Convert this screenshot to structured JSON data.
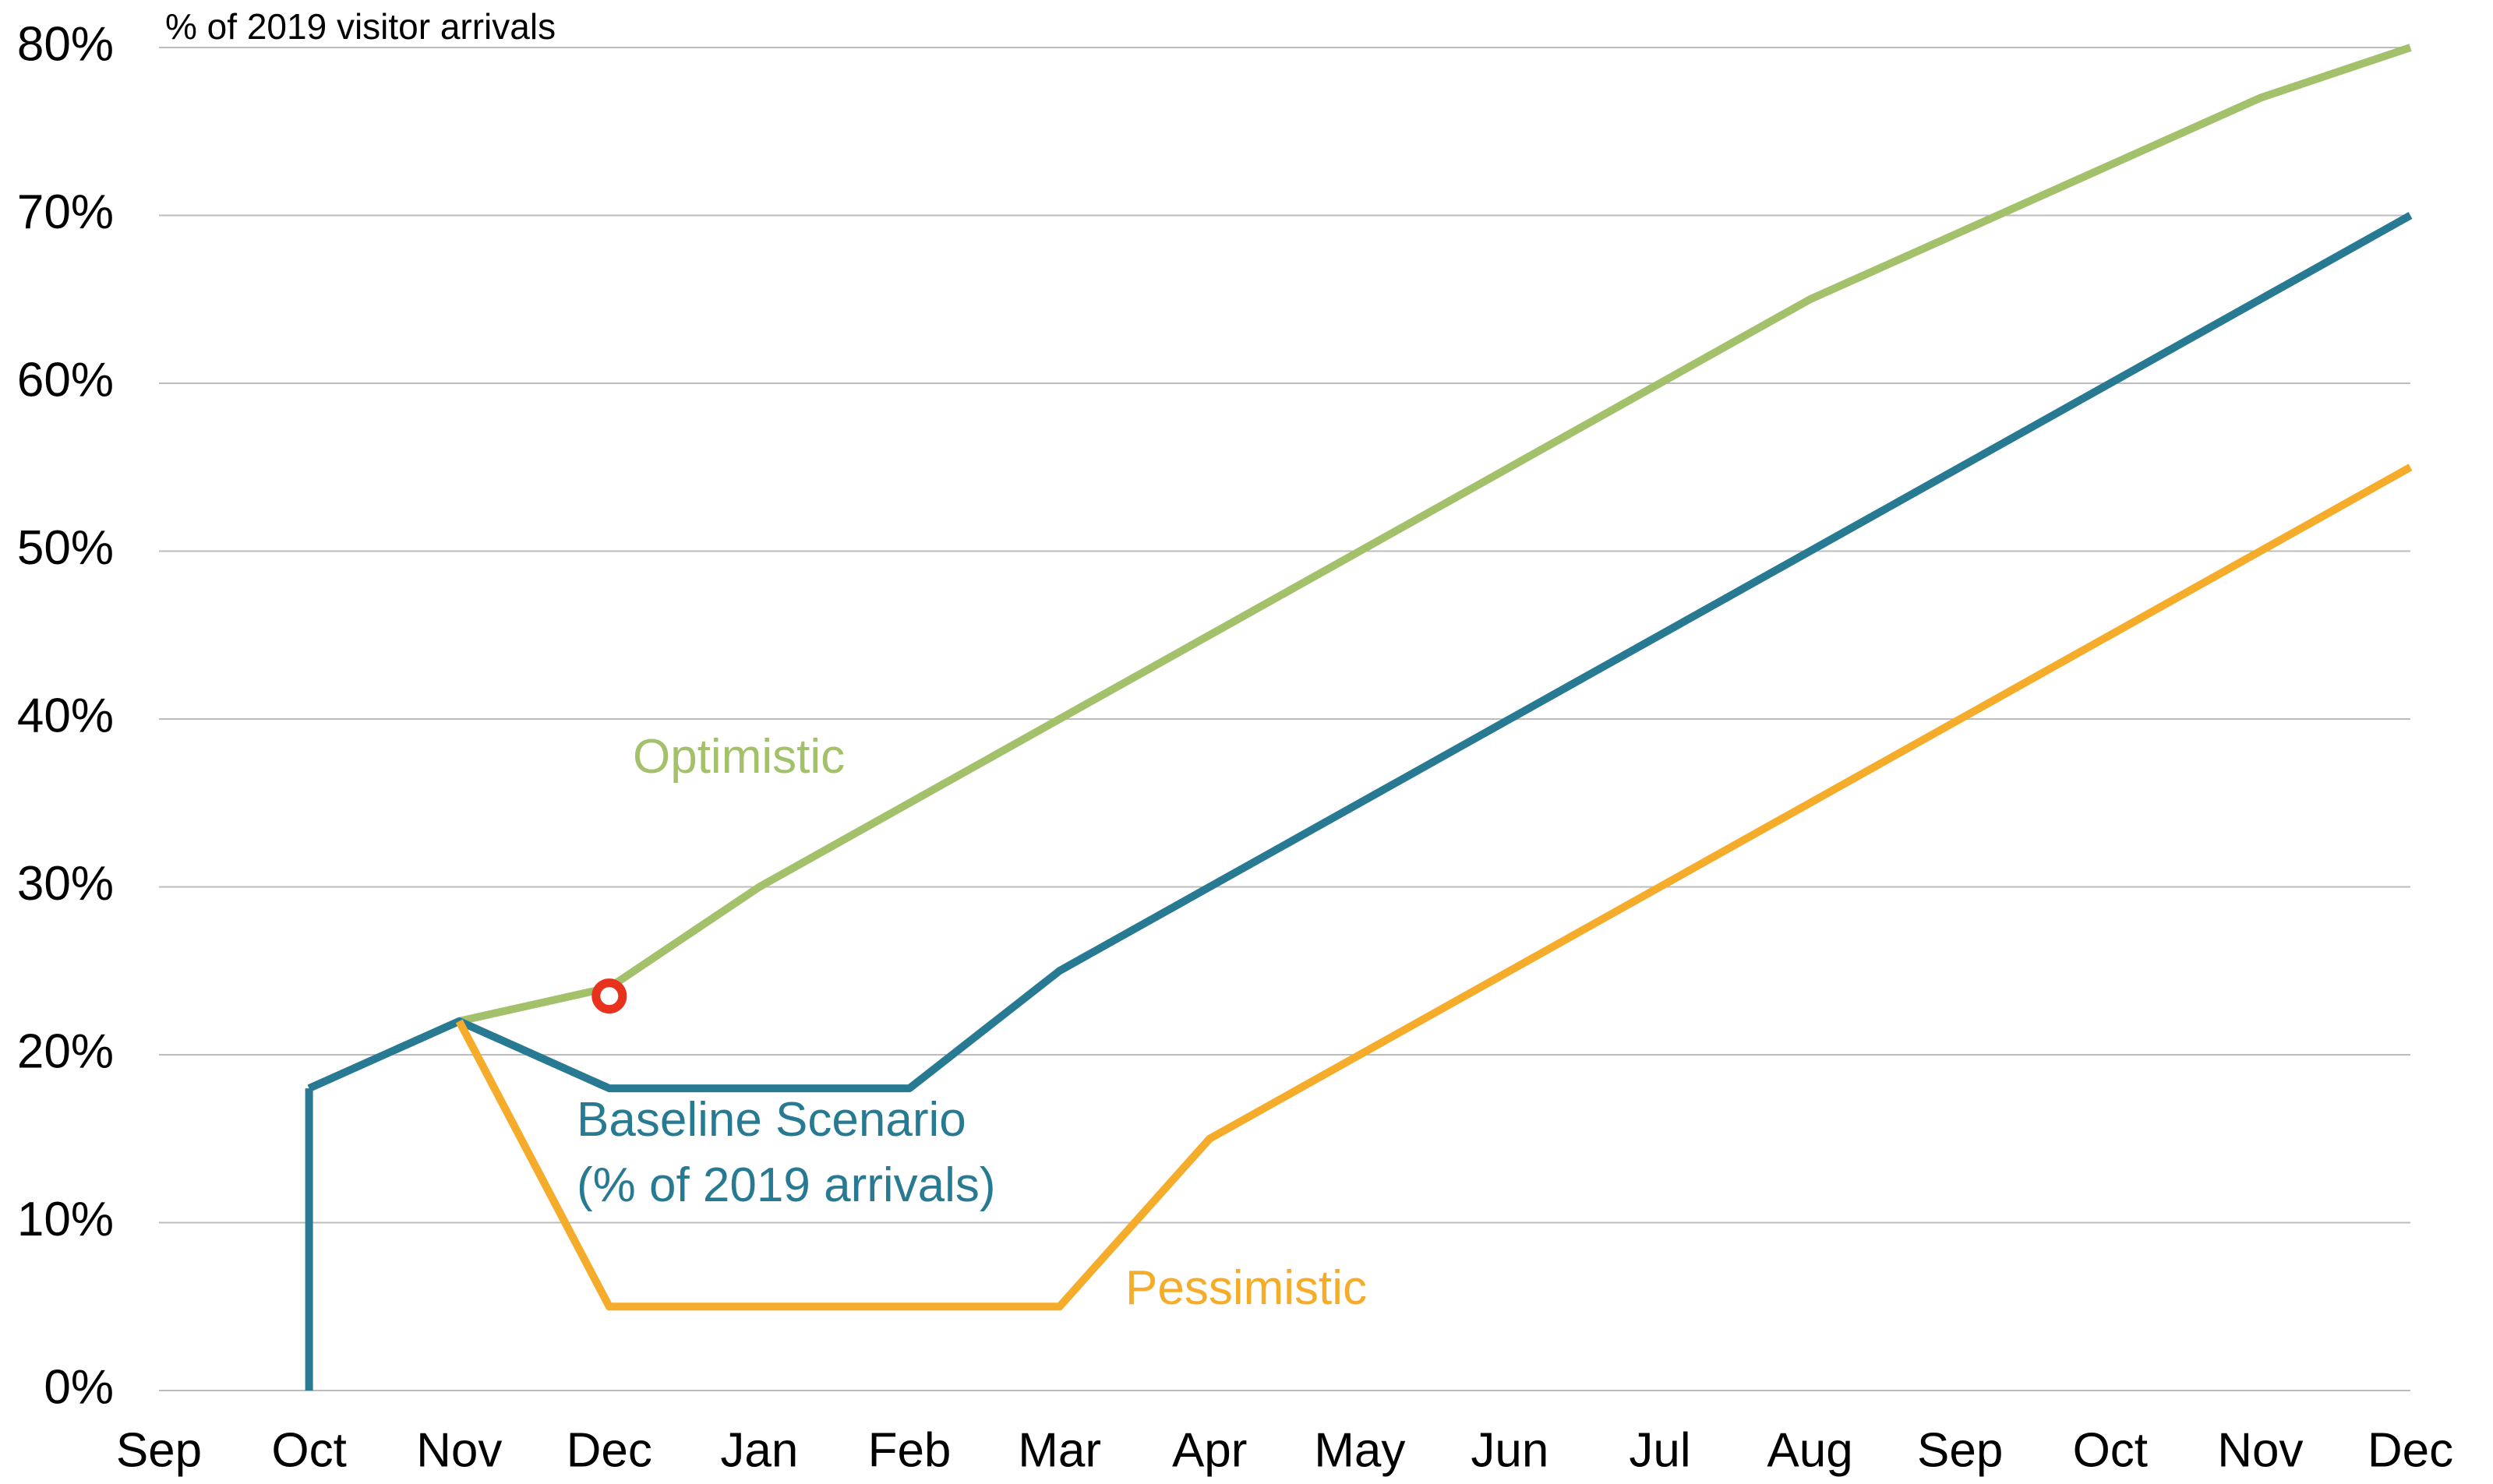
{
  "chart_data": {
    "type": "line",
    "y_label": "% of 2019 visitor arrivals",
    "categories": [
      "Sep",
      "Oct",
      "Nov",
      "Dec",
      "Jan",
      "Feb",
      "Mar",
      "Apr",
      "May",
      "Jun",
      "Jul",
      "Aug",
      "Sep",
      "Oct",
      "Nov",
      "Dec"
    ],
    "series": [
      {
        "name": "Optimistic",
        "color": "#a3c06b",
        "values": [
          null,
          null,
          22,
          24,
          30,
          35,
          40,
          45,
          50,
          55,
          60,
          65,
          69,
          73,
          77,
          80
        ]
      },
      {
        "name": "Baseline Scenario (% of 2019 arrivals)",
        "color": "#287a93",
        "values": [
          null,
          18,
          22,
          18,
          18,
          18,
          25,
          30,
          35,
          40,
          45,
          50,
          55,
          60,
          65,
          70
        ]
      },
      {
        "name": "Pessimistic",
        "color": "#f4ac2a",
        "values": [
          null,
          null,
          22,
          5,
          5,
          5,
          5,
          15,
          20,
          25,
          30,
          35,
          40,
          45,
          50,
          55
        ]
      }
    ],
    "highlight_point": {
      "x": "Dec",
      "value": 23.5,
      "color": "#e8321e"
    },
    "ylim": [
      0,
      80
    ],
    "yticks": [
      {
        "value": 0,
        "label": "0%"
      },
      {
        "value": 10,
        "label": "10%"
      },
      {
        "value": 20,
        "label": "20%"
      },
      {
        "value": 30,
        "label": "30%"
      },
      {
        "value": 40,
        "label": "40%"
      },
      {
        "value": 50,
        "label": "50%"
      },
      {
        "value": 60,
        "label": "60%"
      },
      {
        "value": 70,
        "label": "70%"
      },
      {
        "value": 80,
        "label": "80%"
      }
    ],
    "grid": true
  }
}
